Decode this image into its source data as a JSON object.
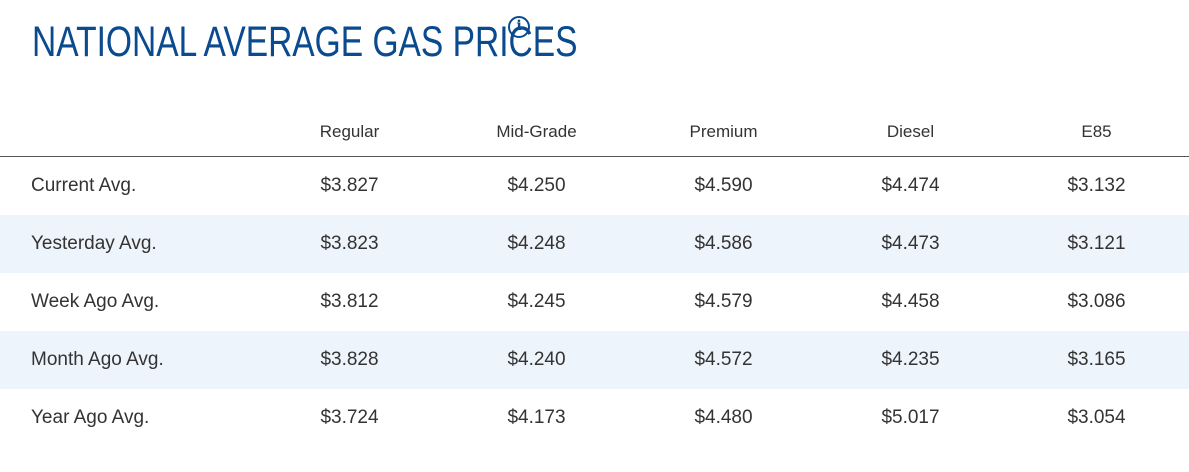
{
  "header": {
    "title": "NATIONAL AVERAGE GAS PRICES",
    "info_icon": "info-icon",
    "accent_color": "#0a4a8f"
  },
  "table": {
    "columns": [
      "",
      "Regular",
      "Mid-Grade",
      "Premium",
      "Diesel",
      "E85"
    ],
    "rows": [
      {
        "label": "Current Avg.",
        "values": [
          "$3.827",
          "$4.250",
          "$4.590",
          "$4.474",
          "$3.132"
        ]
      },
      {
        "label": "Yesterday Avg.",
        "values": [
          "$3.823",
          "$4.248",
          "$4.586",
          "$4.473",
          "$3.121"
        ]
      },
      {
        "label": "Week Ago Avg.",
        "values": [
          "$3.812",
          "$4.245",
          "$4.579",
          "$4.458",
          "$3.086"
        ]
      },
      {
        "label": "Month Ago Avg.",
        "values": [
          "$3.828",
          "$4.240",
          "$4.572",
          "$4.235",
          "$3.165"
        ]
      },
      {
        "label": "Year Ago Avg.",
        "values": [
          "$3.724",
          "$4.173",
          "$4.480",
          "$5.017",
          "$3.054"
        ]
      }
    ],
    "stripe_color": "#eef4fb"
  }
}
